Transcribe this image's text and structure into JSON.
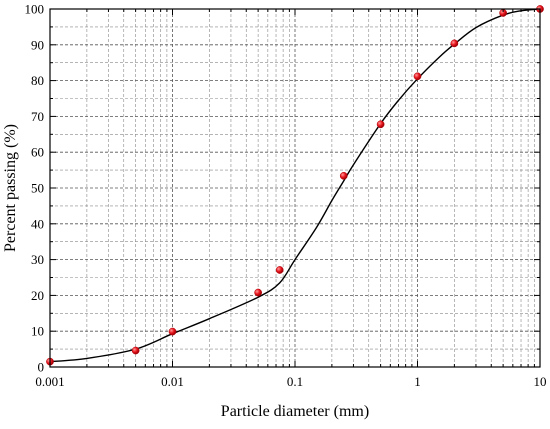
{
  "chart_data": {
    "type": "scatter",
    "title": "",
    "xlabel": "Particle diameter (mm)",
    "ylabel": "Percent passing (%)",
    "xscale": "log",
    "xlim": [
      0.001,
      10
    ],
    "ylim": [
      0,
      100
    ],
    "grid": true,
    "x_ticks": [
      {
        "value": 0.001,
        "label": "0.001"
      },
      {
        "value": 0.01,
        "label": "0.01"
      },
      {
        "value": 0.1,
        "label": "0.1"
      },
      {
        "value": 1,
        "label": "1"
      },
      {
        "value": 10,
        "label": "10"
      }
    ],
    "y_ticks": [
      {
        "value": 0,
        "label": "0"
      },
      {
        "value": 10,
        "label": "10"
      },
      {
        "value": 20,
        "label": "20"
      },
      {
        "value": 30,
        "label": "30"
      },
      {
        "value": 40,
        "label": "40"
      },
      {
        "value": 50,
        "label": "50"
      },
      {
        "value": 60,
        "label": "60"
      },
      {
        "value": 70,
        "label": "70"
      },
      {
        "value": 80,
        "label": "80"
      },
      {
        "value": 90,
        "label": "90"
      },
      {
        "value": 100,
        "label": "100"
      }
    ],
    "series": [
      {
        "kind": "points",
        "marker": "circle",
        "color": "#e8141c",
        "points": [
          {
            "x": 0.001,
            "y": 1.5
          },
          {
            "x": 0.005,
            "y": 4.6
          },
          {
            "x": 0.01,
            "y": 9.9
          },
          {
            "x": 0.05,
            "y": 20.8
          },
          {
            "x": 0.075,
            "y": 27.1
          },
          {
            "x": 0.25,
            "y": 53.4
          },
          {
            "x": 0.5,
            "y": 67.8
          },
          {
            "x": 1,
            "y": 81.2
          },
          {
            "x": 2,
            "y": 90.4
          },
          {
            "x": 5,
            "y": 98.9
          },
          {
            "x": 10,
            "y": 100
          }
        ]
      },
      {
        "kind": "fit-curve",
        "color": "#000000",
        "points": [
          {
            "x": 0.001,
            "y": 1.5
          },
          {
            "x": 0.002,
            "y": 2.4
          },
          {
            "x": 0.005,
            "y": 5.0
          },
          {
            "x": 0.01,
            "y": 9.3
          },
          {
            "x": 0.02,
            "y": 13.5
          },
          {
            "x": 0.05,
            "y": 19.5
          },
          {
            "x": 0.075,
            "y": 23.5
          },
          {
            "x": 0.1,
            "y": 30.0
          },
          {
            "x": 0.15,
            "y": 39.0
          },
          {
            "x": 0.2,
            "y": 46.5
          },
          {
            "x": 0.25,
            "y": 52.0
          },
          {
            "x": 0.3,
            "y": 56.5
          },
          {
            "x": 0.5,
            "y": 68.0
          },
          {
            "x": 0.7,
            "y": 74.5
          },
          {
            "x": 1,
            "y": 80.5
          },
          {
            "x": 1.5,
            "y": 86.5
          },
          {
            "x": 2,
            "y": 90.2
          },
          {
            "x": 3,
            "y": 94.8
          },
          {
            "x": 5,
            "y": 98.3
          },
          {
            "x": 7,
            "y": 99.5
          },
          {
            "x": 10,
            "y": 100
          }
        ]
      }
    ]
  }
}
